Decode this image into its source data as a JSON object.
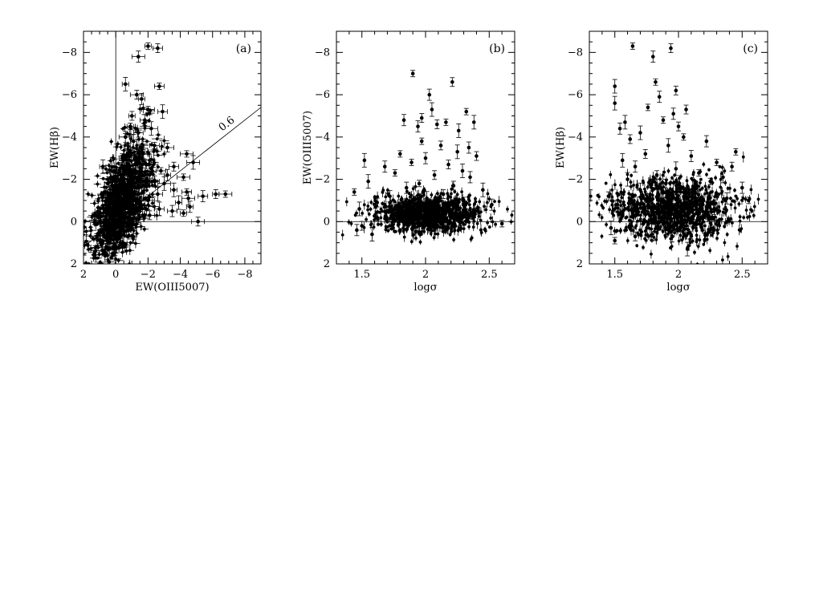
{
  "chart_data": [
    {
      "type": "scatter",
      "panel_label": "(a)",
      "xlabel": "EW(OIII5007)",
      "ylabel": "EW(Hβ)",
      "xlim": [
        2,
        -9
      ],
      "ylim": [
        2,
        -9
      ],
      "xticks": [
        "2",
        "0",
        "-2",
        "-4",
        "-6",
        "-8"
      ],
      "yticks": [
        "2",
        "0",
        "-2",
        "-4",
        "-6",
        "-8"
      ],
      "reference_lines": [
        {
          "kind": "vertical",
          "x": 0
        },
        {
          "kind": "horizontal",
          "y": 0
        },
        {
          "kind": "line",
          "slope": 0.6,
          "label": "0.6"
        }
      ],
      "points": [
        {
          "x": -2.0,
          "y": -8.3
        },
        {
          "x": -2.6,
          "y": -8.2
        },
        {
          "x": -1.4,
          "y": -7.8
        },
        {
          "x": -0.6,
          "y": -6.5
        },
        {
          "x": -2.7,
          "y": -6.4
        },
        {
          "x": -1.3,
          "y": -6.0
        },
        {
          "x": -1.6,
          "y": -5.8
        },
        {
          "x": -2.9,
          "y": -5.2
        },
        {
          "x": -2.0,
          "y": -5.3
        },
        {
          "x": -1.0,
          "y": -5.0
        },
        {
          "x": -1.8,
          "y": -4.8
        },
        {
          "x": -2.2,
          "y": -4.4
        },
        {
          "x": -0.9,
          "y": -4.5
        },
        {
          "x": -1.4,
          "y": -4.2
        },
        {
          "x": -0.6,
          "y": -4.0
        },
        {
          "x": -1.1,
          "y": -3.8
        },
        {
          "x": -2.4,
          "y": -3.6
        },
        {
          "x": -3.2,
          "y": -3.5
        },
        {
          "x": -1.6,
          "y": -3.3
        },
        {
          "x": -0.8,
          "y": -3.1
        },
        {
          "x": -4.4,
          "y": -3.2
        },
        {
          "x": -0.4,
          "y": -3.0
        },
        {
          "x": -2.1,
          "y": -2.9
        },
        {
          "x": -4.8,
          "y": -2.8
        },
        {
          "x": -1.2,
          "y": -2.7
        },
        {
          "x": -3.6,
          "y": -2.6
        },
        {
          "x": -0.7,
          "y": -2.6
        },
        {
          "x": 0.8,
          "y": -2.6
        },
        {
          "x": -2.8,
          "y": -2.4
        },
        {
          "x": -1.5,
          "y": -2.3
        },
        {
          "x": -3.2,
          "y": -2.2
        },
        {
          "x": -0.3,
          "y": -2.2
        },
        {
          "x": -4.2,
          "y": -2.1
        },
        {
          "x": -0.9,
          "y": -2.0
        },
        {
          "x": -2.4,
          "y": -1.9
        },
        {
          "x": -3.0,
          "y": -1.8
        },
        {
          "x": 0.5,
          "y": -1.8
        },
        {
          "x": -1.8,
          "y": -1.7
        },
        {
          "x": -0.6,
          "y": -1.6
        },
        {
          "x": -3.6,
          "y": -1.5
        },
        {
          "x": -4.4,
          "y": -1.4
        },
        {
          "x": -0.2,
          "y": -1.4
        },
        {
          "x": -1.2,
          "y": -1.3
        },
        {
          "x": -2.6,
          "y": -1.3
        },
        {
          "x": -6.8,
          "y": -1.3
        },
        {
          "x": -6.2,
          "y": -1.3
        },
        {
          "x": -5.4,
          "y": -1.2
        },
        {
          "x": -4.5,
          "y": -1.1
        },
        {
          "x": -0.8,
          "y": -1.1
        },
        {
          "x": 0.3,
          "y": -1.0
        },
        {
          "x": -2.0,
          "y": -1.0
        },
        {
          "x": -3.9,
          "y": -0.9
        },
        {
          "x": -1.5,
          "y": -0.8
        },
        {
          "x": -0.4,
          "y": -0.8
        },
        {
          "x": -4.6,
          "y": -0.7
        },
        {
          "x": -2.7,
          "y": -0.6
        },
        {
          "x": 0.6,
          "y": -0.6
        },
        {
          "x": -1.0,
          "y": -0.5
        },
        {
          "x": -3.5,
          "y": -0.5
        },
        {
          "x": -0.1,
          "y": -0.4
        },
        {
          "x": -4.2,
          "y": -0.4
        },
        {
          "x": -2.1,
          "y": -0.3
        },
        {
          "x": -0.7,
          "y": -0.2
        },
        {
          "x": 0.4,
          "y": -0.1
        },
        {
          "x": -1.4,
          "y": -0.1
        },
        {
          "x": -5.1,
          "y": 0.0
        },
        {
          "x": -0.3,
          "y": 0.0
        },
        {
          "x": 0.7,
          "y": 0.1
        },
        {
          "x": -0.9,
          "y": 0.2
        },
        {
          "x": 0.2,
          "y": 0.3
        },
        {
          "x": -0.5,
          "y": 0.4
        },
        {
          "x": 0.5,
          "y": 0.5
        },
        {
          "x": -0.1,
          "y": 0.6
        },
        {
          "x": 0.3,
          "y": 0.8
        },
        {
          "x": -0.3,
          "y": 1.0
        },
        {
          "x": 0.6,
          "y": 1.2
        },
        {
          "x": 0.1,
          "y": 1.3
        }
      ],
      "dense_cloud": {
        "x_center": -0.4,
        "x_spread": 0.9,
        "y_center": -0.9,
        "y_spread": 1.2
      }
    },
    {
      "type": "scatter",
      "panel_label": "(b)",
      "xlabel": "logσ",
      "ylabel": "EW(OIII5007)",
      "xlim": [
        1.3,
        2.7
      ],
      "ylim": [
        2,
        -9
      ],
      "xticks": [
        "1.5",
        "2",
        "2.5"
      ],
      "yticks": [
        "2",
        "0",
        "-2",
        "-4",
        "-6",
        "-8"
      ],
      "reference_lines": [
        {
          "kind": "horizontal",
          "y": 0
        }
      ],
      "points": [
        {
          "x": 1.9,
          "y": -7.0
        },
        {
          "x": 2.21,
          "y": -6.6
        },
        {
          "x": 2.03,
          "y": -6.0
        },
        {
          "x": 2.05,
          "y": -5.3
        },
        {
          "x": 2.32,
          "y": -5.2
        },
        {
          "x": 1.97,
          "y": -4.9
        },
        {
          "x": 1.83,
          "y": -4.8
        },
        {
          "x": 2.38,
          "y": -4.7
        },
        {
          "x": 2.16,
          "y": -4.7
        },
        {
          "x": 2.09,
          "y": -4.6
        },
        {
          "x": 1.94,
          "y": -4.5
        },
        {
          "x": 2.26,
          "y": -4.3
        },
        {
          "x": 1.97,
          "y": -3.8
        },
        {
          "x": 2.12,
          "y": -3.6
        },
        {
          "x": 2.34,
          "y": -3.5
        },
        {
          "x": 2.25,
          "y": -3.3
        },
        {
          "x": 1.8,
          "y": -3.2
        },
        {
          "x": 2.4,
          "y": -3.1
        },
        {
          "x": 2.0,
          "y": -3.0
        },
        {
          "x": 1.52,
          "y": -2.9
        },
        {
          "x": 1.89,
          "y": -2.8
        },
        {
          "x": 2.18,
          "y": -2.7
        },
        {
          "x": 1.68,
          "y": -2.6
        },
        {
          "x": 2.29,
          "y": -2.4
        },
        {
          "x": 1.76,
          "y": -2.3
        },
        {
          "x": 2.07,
          "y": -2.2
        },
        {
          "x": 2.35,
          "y": -2.1
        },
        {
          "x": 1.55,
          "y": -1.9
        },
        {
          "x": 1.95,
          "y": -1.8
        },
        {
          "x": 2.22,
          "y": -1.7
        },
        {
          "x": 1.85,
          "y": -1.6
        },
        {
          "x": 2.45,
          "y": -1.5
        },
        {
          "x": 1.44,
          "y": -1.4
        },
        {
          "x": 2.14,
          "y": -1.3
        },
        {
          "x": 1.72,
          "y": -1.2
        },
        {
          "x": 2.01,
          "y": -1.1
        },
        {
          "x": 2.3,
          "y": -1.0
        },
        {
          "x": 1.62,
          "y": -0.9
        },
        {
          "x": 2.52,
          "y": -0.8
        },
        {
          "x": 1.48,
          "y": -0.6
        },
        {
          "x": 2.41,
          "y": -0.5
        },
        {
          "x": 1.5,
          "y": 0.2
        },
        {
          "x": 1.46,
          "y": 0.4
        },
        {
          "x": 1.58,
          "y": 0.6
        },
        {
          "x": 2.6,
          "y": 0.1
        }
      ],
      "dense_cloud": {
        "x_center": 2.02,
        "x_spread": 0.22,
        "y_center": -0.35,
        "y_spread": 0.45
      }
    },
    {
      "type": "scatter",
      "panel_label": "(c)",
      "xlabel": "logσ",
      "ylabel": "EW(Hβ)",
      "xlim": [
        1.3,
        2.7
      ],
      "ylim": [
        2,
        -9
      ],
      "xticks": [
        "1.5",
        "2",
        "2.5"
      ],
      "yticks": [
        "2",
        "0",
        "-2",
        "-4",
        "-6",
        "-8"
      ],
      "reference_lines": [
        {
          "kind": "horizontal",
          "y": 0
        }
      ],
      "points": [
        {
          "x": 1.64,
          "y": -8.3
        },
        {
          "x": 1.94,
          "y": -8.2
        },
        {
          "x": 1.8,
          "y": -7.8
        },
        {
          "x": 1.5,
          "y": -6.4
        },
        {
          "x": 1.82,
          "y": -6.6
        },
        {
          "x": 1.98,
          "y": -6.2
        },
        {
          "x": 1.85,
          "y": -5.9
        },
        {
          "x": 1.5,
          "y": -5.6
        },
        {
          "x": 1.76,
          "y": -5.4
        },
        {
          "x": 2.06,
          "y": -5.3
        },
        {
          "x": 1.96,
          "y": -5.1
        },
        {
          "x": 1.58,
          "y": -4.7
        },
        {
          "x": 1.88,
          "y": -4.8
        },
        {
          "x": 2.0,
          "y": -4.5
        },
        {
          "x": 1.54,
          "y": -4.4
        },
        {
          "x": 1.7,
          "y": -4.2
        },
        {
          "x": 2.04,
          "y": -4.0
        },
        {
          "x": 1.62,
          "y": -3.9
        },
        {
          "x": 2.22,
          "y": -3.8
        },
        {
          "x": 1.92,
          "y": -3.6
        },
        {
          "x": 2.45,
          "y": -3.3
        },
        {
          "x": 1.74,
          "y": -3.2
        },
        {
          "x": 2.1,
          "y": -3.1
        },
        {
          "x": 1.56,
          "y": -2.9
        },
        {
          "x": 2.3,
          "y": -2.8
        },
        {
          "x": 2.42,
          "y": -2.6
        },
        {
          "x": 1.66,
          "y": -2.6
        },
        {
          "x": 1.98,
          "y": -2.5
        },
        {
          "x": 2.16,
          "y": -2.3
        },
        {
          "x": 1.83,
          "y": -2.2
        },
        {
          "x": 2.35,
          "y": -2.1
        },
        {
          "x": 1.6,
          "y": -2.0
        },
        {
          "x": 2.25,
          "y": -1.9
        },
        {
          "x": 1.9,
          "y": -1.8
        },
        {
          "x": 2.5,
          "y": -1.6
        },
        {
          "x": 1.7,
          "y": -1.5
        },
        {
          "x": 2.05,
          "y": -1.4
        },
        {
          "x": 1.45,
          "y": -1.2
        },
        {
          "x": 2.38,
          "y": -1.1
        },
        {
          "x": 1.78,
          "y": -1.0
        },
        {
          "x": 2.55,
          "y": -1.0
        },
        {
          "x": 1.52,
          "y": -0.8
        },
        {
          "x": 2.28,
          "y": -0.6
        },
        {
          "x": 1.47,
          "y": 0.3
        },
        {
          "x": 1.5,
          "y": 0.9
        },
        {
          "x": 1.66,
          "y": 0.7
        },
        {
          "x": 1.95,
          "y": 0.7
        },
        {
          "x": 2.07,
          "y": 1.3
        }
      ],
      "dense_cloud": {
        "x_center": 1.96,
        "x_spread": 0.24,
        "y_center": -0.6,
        "y_spread": 0.75
      }
    }
  ]
}
